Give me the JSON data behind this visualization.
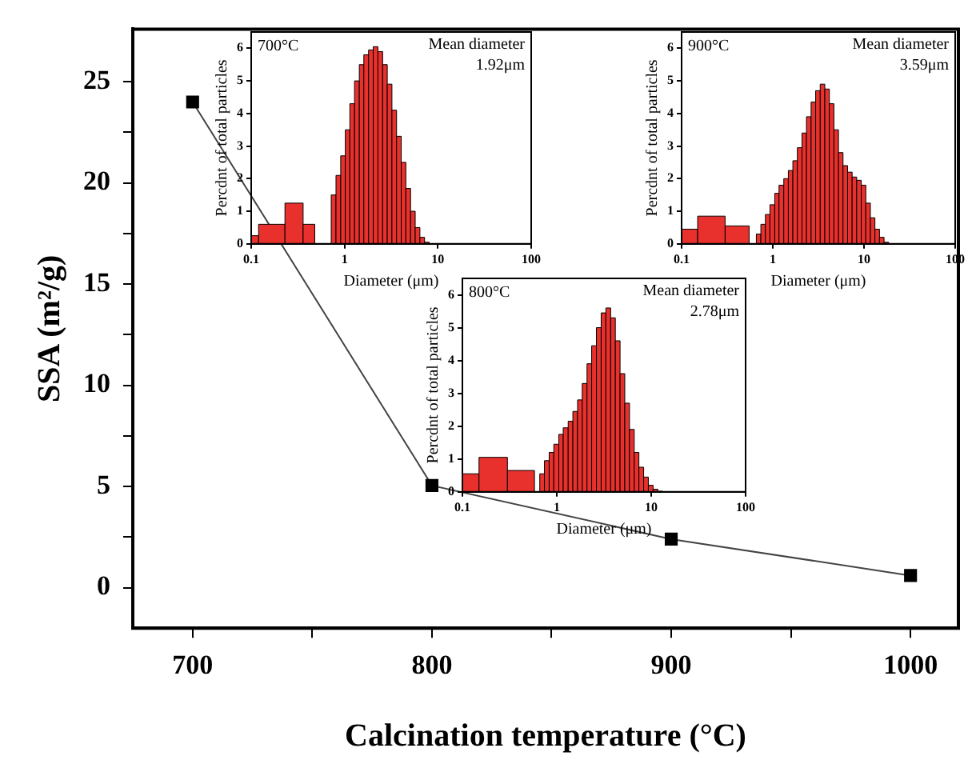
{
  "chart_data": [
    {
      "type": "line",
      "xlabel": "Calcination temperature (°C)",
      "ylabel": "SSA (m²/g)",
      "x": [
        700,
        800,
        900,
        1000
      ],
      "values": [
        24,
        5.05,
        2.4,
        0.6
      ],
      "color": "#000000",
      "marker": "square",
      "line_style": "solid",
      "xlim": [
        675,
        1020
      ],
      "ylim": [
        -2,
        27.6
      ],
      "xticks": [
        700,
        {
          "value": 750,
          "label": null
        },
        800,
        {
          "value": 850,
          "label": null
        },
        900,
        {
          "value": 950,
          "label": null
        },
        1000
      ],
      "yticks": [
        0,
        {
          "value": 2.5,
          "label": null
        },
        5,
        {
          "value": 7.5,
          "label": null
        },
        10,
        {
          "value": 12.5,
          "label": null
        },
        15,
        {
          "value": 17.5,
          "label": null
        },
        20,
        {
          "value": 22.5,
          "label": null
        },
        25
      ],
      "grid": false,
      "legend": false
    },
    {
      "type": "histogram",
      "xlabel": "Diameter (μm)",
      "ylabel": "Percdnt of total particles",
      "annotations": [
        "700°C",
        "Mean diameter",
        "1.92μm"
      ],
      "bins": [
        0.1,
        0.12,
        0.23,
        0.36,
        0.48,
        0.72,
        0.81,
        0.91,
        1.02,
        1.14,
        1.28,
        1.44,
        1.61,
        1.81,
        2.03,
        2.28,
        2.56,
        2.87,
        3.22,
        3.61,
        4.05,
        4.54,
        5.1,
        5.72,
        6.42,
        7.2,
        8.08
      ],
      "values": [
        0.25,
        0.6,
        1.25,
        0.6,
        0,
        1.5,
        2.1,
        2.7,
        3.5,
        4.3,
        5.0,
        5.5,
        5.8,
        5.95,
        6.05,
        5.9,
        5.5,
        4.9,
        4.1,
        3.3,
        2.5,
        1.7,
        1.0,
        0.5,
        0.2,
        0.05
      ],
      "color": "#e8302c",
      "log": "x",
      "xlim": [
        0.1,
        100
      ],
      "ylim": [
        0,
        6.5
      ],
      "xticks": [
        0.1,
        1,
        10,
        100
      ],
      "yticks": [
        0,
        1,
        2,
        3,
        4,
        5,
        6
      ],
      "grid": false,
      "legend": false
    },
    {
      "type": "histogram",
      "xlabel": "Diameter (μm)",
      "ylabel": "Percdnt of total particles",
      "annotations": [
        "900°C",
        "Mean diameter",
        "3.59μm"
      ],
      "bins": [
        0.1,
        0.15,
        0.3,
        0.55,
        0.66,
        0.74,
        0.83,
        0.93,
        1.05,
        1.17,
        1.32,
        1.48,
        1.66,
        1.86,
        2.09,
        2.34,
        2.63,
        2.95,
        3.31,
        3.72,
        4.17,
        4.68,
        5.25,
        5.89,
        6.61,
        7.41,
        8.32,
        9.33,
        10.47,
        11.75,
        13.18,
        14.79,
        16.6,
        18.62
      ],
      "values": [
        0.45,
        0.85,
        0.55,
        0,
        0.3,
        0.6,
        0.9,
        1.2,
        1.55,
        1.8,
        2.0,
        2.25,
        2.55,
        2.95,
        3.4,
        3.9,
        4.35,
        4.7,
        4.9,
        4.75,
        4.3,
        3.5,
        2.8,
        2.4,
        2.2,
        2.05,
        1.95,
        1.8,
        1.25,
        0.8,
        0.45,
        0.2,
        0.05
      ],
      "color": "#e8302c",
      "log": "x",
      "xlim": [
        0.1,
        100
      ],
      "ylim": [
        0,
        6.5
      ],
      "xticks": [
        0.1,
        1,
        10,
        100
      ],
      "yticks": [
        0,
        1,
        2,
        3,
        4,
        5,
        6
      ],
      "grid": false,
      "legend": false
    },
    {
      "type": "histogram",
      "xlabel": "Diameter (μm)",
      "ylabel": "Percdnt of total particles",
      "annotations": [
        "800°C",
        "Mean diameter",
        "2.78μm"
      ],
      "bins": [
        0.1,
        0.15,
        0.3,
        0.58,
        0.66,
        0.74,
        0.83,
        0.93,
        1.05,
        1.17,
        1.32,
        1.48,
        1.66,
        1.86,
        2.09,
        2.34,
        2.63,
        2.95,
        3.31,
        3.72,
        4.17,
        4.68,
        5.25,
        5.89,
        6.61,
        7.41,
        8.32,
        9.33,
        10.47,
        11.75,
        13.18
      ],
      "values": [
        0.55,
        1.05,
        0.65,
        0,
        0.55,
        0.95,
        1.2,
        1.45,
        1.75,
        1.95,
        2.15,
        2.45,
        2.8,
        3.3,
        3.9,
        4.45,
        5.0,
        5.45,
        5.6,
        5.3,
        4.6,
        3.6,
        2.7,
        1.9,
        1.2,
        0.75,
        0.45,
        0.2,
        0.08,
        0.02
      ],
      "color": "#e8302c",
      "log": "x",
      "xlim": [
        0.1,
        100
      ],
      "ylim": [
        0,
        6.5
      ],
      "xticks": [
        0.1,
        1,
        10,
        100
      ],
      "yticks": [
        0,
        1,
        2,
        3,
        4,
        5,
        6
      ],
      "grid": false,
      "legend": false
    }
  ]
}
